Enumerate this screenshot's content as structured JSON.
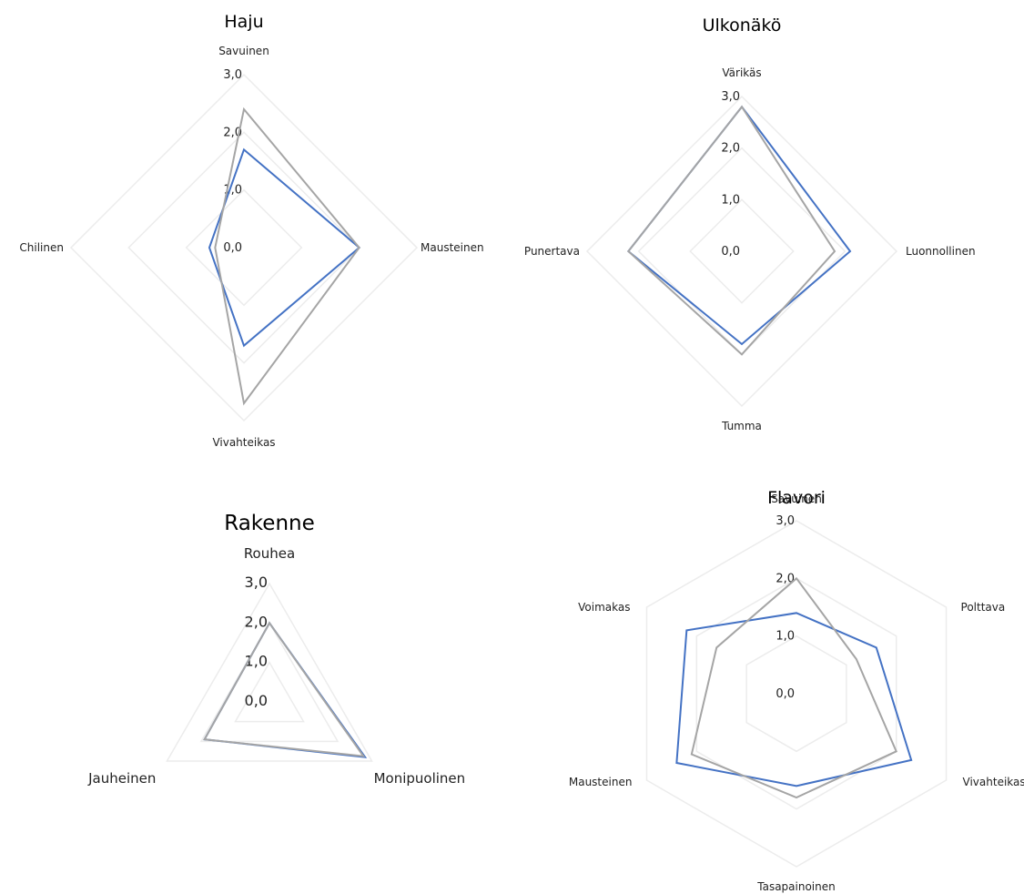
{
  "chart_data": [
    {
      "type": "radar",
      "title": "Haju",
      "axes": [
        "Savuinen",
        "Mausteinen",
        "Vivahteikas",
        "Chilinen"
      ],
      "ticks": [
        "0,0",
        "1,0",
        "2,0",
        "3,0"
      ],
      "range": [
        0,
        3
      ],
      "series": [
        {
          "values": [
            1.7,
            2.0,
            1.7,
            0.6
          ],
          "color": "#4472C4"
        },
        {
          "values": [
            2.4,
            2.0,
            2.7,
            0.5
          ],
          "color": "#A5A5A5"
        }
      ]
    },
    {
      "type": "radar",
      "title": "Ulkonäkö",
      "axes": [
        "Värikäs",
        "Luonnollinen",
        "Tumma",
        "Punertava"
      ],
      "ticks": [
        "0,0",
        "1,0",
        "2,0",
        "3,0"
      ],
      "range": [
        0,
        3
      ],
      "series": [
        {
          "values": [
            2.8,
            2.1,
            1.8,
            2.2
          ],
          "color": "#4472C4"
        },
        {
          "values": [
            2.8,
            1.8,
            2.0,
            2.2
          ],
          "color": "#A5A5A5"
        }
      ]
    },
    {
      "type": "radar",
      "title": "Rakenne",
      "axes": [
        "Rouhea",
        "Monipuolinen",
        "Jauheinen"
      ],
      "ticks": [
        "0,0",
        "1,0",
        "2,0",
        "3,0"
      ],
      "range": [
        0,
        3
      ],
      "series": [
        {
          "values": [
            2.0,
            2.8,
            1.9
          ],
          "color": "#4472C4"
        },
        {
          "values": [
            2.0,
            2.75,
            1.9
          ],
          "color": "#A5A5A5"
        }
      ]
    },
    {
      "type": "radar",
      "title": "Flavori",
      "axes": [
        "Savuinen",
        "Polttava",
        "Vivahteikas",
        "Tasapainoinen",
        "Mausteinen",
        "Voimakas"
      ],
      "ticks": [
        "0,0",
        "1,0",
        "2,0",
        "3,0"
      ],
      "range": [
        0,
        3
      ],
      "series": [
        {
          "values": [
            1.4,
            1.6,
            2.3,
            1.6,
            2.4,
            2.2
          ],
          "color": "#4472C4"
        },
        {
          "values": [
            2.0,
            1.2,
            2.0,
            1.8,
            2.1,
            1.6
          ],
          "color": "#A5A5A5"
        }
      ]
    }
  ]
}
